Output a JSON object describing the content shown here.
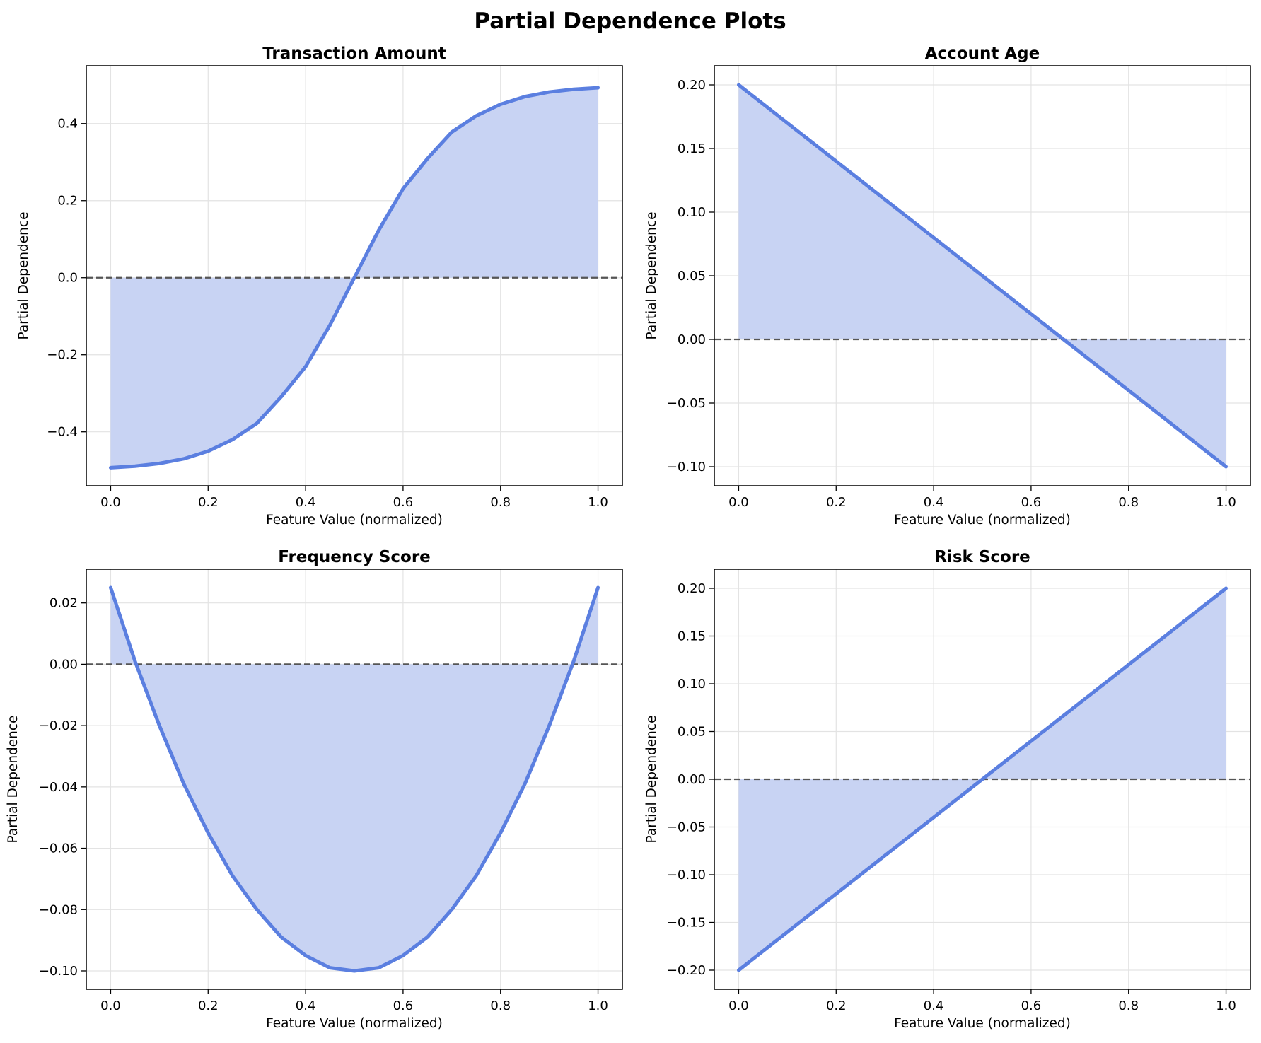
{
  "figure": {
    "title": "Partial Dependence Plots",
    "line_color": "#5b7fe0",
    "fill_color": "#c8d3f3",
    "zero_line_color": "#555555",
    "grid_color": "#e3e3e3"
  },
  "chart_data": [
    {
      "type": "area",
      "title": "Transaction Amount",
      "xlabel": "Feature Value (normalized)",
      "ylabel": "Partial Dependence",
      "xlim": [
        -0.05,
        1.05
      ],
      "ylim": [
        -0.54,
        0.55
      ],
      "x_ticks": [
        0.0,
        0.2,
        0.4,
        0.6,
        0.8,
        1.0
      ],
      "x_tick_labels": [
        "0.0",
        "0.2",
        "0.4",
        "0.6",
        "0.8",
        "1.0"
      ],
      "y_ticks": [
        -0.4,
        -0.2,
        0.0,
        0.2,
        0.4
      ],
      "y_tick_labels": [
        "−0.4",
        "−0.2",
        "0.0",
        "0.2",
        "0.4"
      ],
      "grid": true,
      "reference_line_y": 0,
      "x": [
        0.0,
        0.05,
        0.1,
        0.15,
        0.2,
        0.25,
        0.3,
        0.35,
        0.4,
        0.45,
        0.5,
        0.55,
        0.6,
        0.65,
        0.7,
        0.75,
        0.8,
        0.85,
        0.9,
        0.95,
        1.0
      ],
      "y": [
        -0.493,
        -0.489,
        -0.482,
        -0.47,
        -0.45,
        -0.42,
        -0.378,
        -0.309,
        -0.231,
        -0.123,
        0.0,
        0.123,
        0.231,
        0.309,
        0.378,
        0.42,
        0.45,
        0.47,
        0.482,
        0.489,
        0.493
      ]
    },
    {
      "type": "area",
      "title": "Account Age",
      "xlabel": "Feature Value (normalized)",
      "ylabel": "Partial Dependence",
      "xlim": [
        -0.05,
        1.05
      ],
      "ylim": [
        -0.115,
        0.215
      ],
      "x_ticks": [
        0.0,
        0.2,
        0.4,
        0.6,
        0.8,
        1.0
      ],
      "x_tick_labels": [
        "0.0",
        "0.2",
        "0.4",
        "0.6",
        "0.8",
        "1.0"
      ],
      "y_ticks": [
        -0.1,
        -0.05,
        0.0,
        0.05,
        0.1,
        0.15,
        0.2
      ],
      "y_tick_labels": [
        "−0.10",
        "−0.05",
        "0.00",
        "0.05",
        "0.10",
        "0.15",
        "0.20"
      ],
      "grid": true,
      "reference_line_y": 0,
      "x": [
        0.0,
        1.0
      ],
      "y": [
        0.2,
        -0.1
      ]
    },
    {
      "type": "area",
      "title": "Frequency Score",
      "xlabel": "Feature Value (normalized)",
      "ylabel": "Partial Dependence",
      "xlim": [
        -0.05,
        1.05
      ],
      "ylim": [
        -0.106,
        0.031
      ],
      "x_ticks": [
        0.0,
        0.2,
        0.4,
        0.6,
        0.8,
        1.0
      ],
      "x_tick_labels": [
        "0.0",
        "0.2",
        "0.4",
        "0.6",
        "0.8",
        "1.0"
      ],
      "y_ticks": [
        -0.1,
        -0.08,
        -0.06,
        -0.04,
        -0.02,
        0.0,
        0.02
      ],
      "y_tick_labels": [
        "−0.10",
        "−0.08",
        "−0.06",
        "−0.04",
        "−0.02",
        "0.00",
        "0.02"
      ],
      "grid": true,
      "reference_line_y": 0,
      "x": [
        0.0,
        0.05,
        0.1,
        0.15,
        0.2,
        0.25,
        0.3,
        0.35,
        0.4,
        0.45,
        0.5,
        0.55,
        0.6,
        0.65,
        0.7,
        0.75,
        0.8,
        0.85,
        0.9,
        0.95,
        1.0
      ],
      "y": [
        0.025,
        0.001,
        -0.02,
        -0.039,
        -0.055,
        -0.069,
        -0.08,
        -0.089,
        -0.095,
        -0.099,
        -0.1,
        -0.099,
        -0.095,
        -0.089,
        -0.08,
        -0.069,
        -0.055,
        -0.039,
        -0.02,
        0.001,
        0.025
      ]
    },
    {
      "type": "area",
      "title": "Risk Score",
      "xlabel": "Feature Value (normalized)",
      "ylabel": "Partial Dependence",
      "xlim": [
        -0.05,
        1.05
      ],
      "ylim": [
        -0.22,
        0.22
      ],
      "x_ticks": [
        0.0,
        0.2,
        0.4,
        0.6,
        0.8,
        1.0
      ],
      "x_tick_labels": [
        "0.0",
        "0.2",
        "0.4",
        "0.6",
        "0.8",
        "1.0"
      ],
      "y_ticks": [
        -0.2,
        -0.15,
        -0.1,
        -0.05,
        0.0,
        0.05,
        0.1,
        0.15,
        0.2
      ],
      "y_tick_labels": [
        "−0.20",
        "−0.15",
        "−0.10",
        "−0.05",
        "0.00",
        "0.05",
        "0.10",
        "0.15",
        "0.20"
      ],
      "grid": true,
      "reference_line_y": 0,
      "x": [
        0.0,
        1.0
      ],
      "y": [
        -0.2,
        0.2
      ]
    }
  ]
}
